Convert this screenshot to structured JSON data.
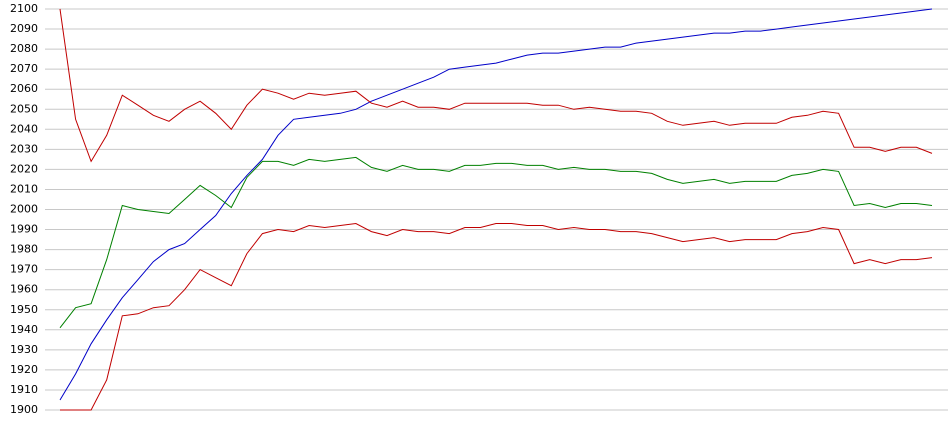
{
  "chart_data": {
    "type": "line",
    "categories": [
      null,
      null,
      null,
      null,
      null,
      null,
      null,
      null,
      null,
      null,
      null,
      null,
      null,
      null,
      null,
      null,
      null,
      null,
      null,
      null,
      null,
      null,
      null,
      null,
      null,
      null,
      null,
      null,
      null,
      null,
      null,
      null,
      null,
      null,
      null,
      null,
      null,
      null,
      null,
      null,
      null,
      null,
      null,
      null,
      null,
      null,
      null,
      null,
      null,
      null,
      null,
      null,
      null,
      null,
      null,
      null,
      null
    ],
    "ylim": [
      1900,
      2100
    ],
    "yticks": [
      1900,
      1910,
      1920,
      1930,
      1940,
      1950,
      1960,
      1970,
      1980,
      1990,
      2000,
      2010,
      2020,
      2030,
      2040,
      2050,
      2060,
      2070,
      2080,
      2090,
      2100
    ],
    "grid": true,
    "series": [
      {
        "color": "#0000c8",
        "values": [
          1905,
          1918,
          1933,
          1945,
          1956,
          1965,
          1974,
          1980,
          1983,
          1990,
          1997,
          2008,
          2017,
          2025,
          2037,
          2045,
          2046,
          2047,
          2048,
          2050,
          2054,
          2057,
          2060,
          2063,
          2066,
          2070,
          2071,
          2072,
          2073,
          2075,
          2077,
          2078,
          2078,
          2079,
          2080,
          2081,
          2081,
          2083,
          2084,
          2085,
          2086,
          2087,
          2088,
          2088,
          2089,
          2089,
          2090,
          2091,
          2092,
          2093,
          2094,
          2095,
          2096,
          2097,
          2098,
          2099,
          2100
        ]
      },
      {
        "color": "#c00000",
        "values": [
          2100,
          2045,
          2024,
          2037,
          2057,
          2052,
          2047,
          2044,
          2050,
          2054,
          2048,
          2040,
          2052,
          2060,
          2058,
          2055,
          2058,
          2057,
          2058,
          2059,
          2053,
          2051,
          2054,
          2051,
          2051,
          2050,
          2053,
          2053,
          2053,
          2053,
          2053,
          2052,
          2052,
          2050,
          2051,
          2050,
          2049,
          2049,
          2048,
          2044,
          2042,
          2043,
          2044,
          2042,
          2043,
          2043,
          2043,
          2046,
          2047,
          2049,
          2048,
          2031,
          2031,
          2029,
          2031,
          2031,
          2028
        ]
      },
      {
        "color": "#008000",
        "values": [
          1941,
          1951,
          1953,
          1975,
          2002,
          2000,
          1999,
          1998,
          2005,
          2012,
          2007,
          2001,
          2016,
          2024,
          2024,
          2022,
          2025,
          2024,
          2025,
          2026,
          2021,
          2019,
          2022,
          2020,
          2020,
          2019,
          2022,
          2022,
          2023,
          2023,
          2022,
          2022,
          2020,
          2021,
          2020,
          2020,
          2019,
          2019,
          2018,
          2015,
          2013,
          2014,
          2015,
          2013,
          2014,
          2014,
          2014,
          2017,
          2018,
          2020,
          2019,
          2002,
          2003,
          2001,
          2003,
          2003,
          2002
        ]
      },
      {
        "color": "#c00000",
        "values": [
          1900,
          1900,
          1900,
          1915,
          1947,
          1948,
          1951,
          1952,
          1960,
          1970,
          1966,
          1962,
          1978,
          1988,
          1990,
          1989,
          1992,
          1991,
          1992,
          1993,
          1989,
          1987,
          1990,
          1989,
          1989,
          1988,
          1991,
          1991,
          1993,
          1993,
          1992,
          1992,
          1990,
          1991,
          1990,
          1990,
          1989,
          1989,
          1988,
          1986,
          1984,
          1985,
          1986,
          1984,
          1985,
          1985,
          1985,
          1988,
          1989,
          1991,
          1990,
          1973,
          1975,
          1973,
          1975,
          1975,
          1976
        ]
      }
    ]
  }
}
